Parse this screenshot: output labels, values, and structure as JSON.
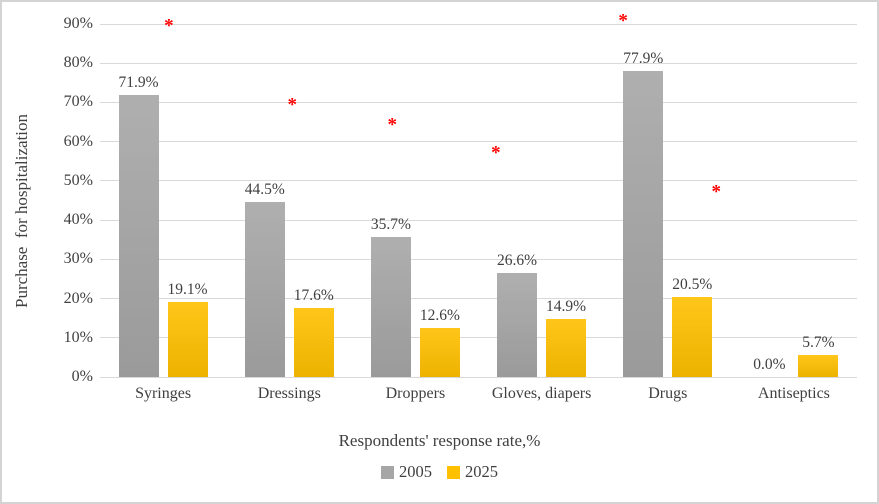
{
  "chart_data": {
    "type": "bar",
    "categories": [
      "Syringes",
      "Dressings",
      "Droppers",
      "Gloves, diapers",
      "Drugs",
      "Antiseptics"
    ],
    "series": [
      {
        "name": "2005",
        "color": "#a6a6a6",
        "values": [
          71.9,
          44.5,
          35.7,
          26.6,
          77.9,
          0.0
        ]
      },
      {
        "name": "2025",
        "color": "#ffc000",
        "values": [
          19.1,
          17.6,
          12.6,
          14.9,
          20.5,
          5.7
        ]
      }
    ],
    "data_labels": {
      "suffix": "%",
      "decimals": 1,
      "color": "#3f3f3f"
    },
    "y_axis": {
      "title": "Purchase  for hospitalization",
      "min": 0,
      "max": 90,
      "step": 10,
      "tick_labels": [
        "0%",
        "10%",
        "20%",
        "30%",
        "40%",
        "50%",
        "60%",
        "70%",
        "80%",
        "90%"
      ]
    },
    "x_axis": {
      "title": "Respondents' response rate,%"
    },
    "legend": {
      "position": "bottom",
      "entries": [
        "2005",
        "2025"
      ]
    },
    "gridlines": {
      "show": true,
      "color": "#d9d9d9"
    },
    "annotations": {
      "marker": "*",
      "color": "#ff0000",
      "points": [
        {
          "near_category": "Syringes",
          "x_frac": 0.091,
          "value": 90.3
        },
        {
          "near_category": "Dressings",
          "x_frac": 0.254,
          "value": 70.0
        },
        {
          "near_category": "Droppers",
          "x_frac": 0.386,
          "value": 65.0
        },
        {
          "near_category": "Gloves, diapers",
          "x_frac": 0.523,
          "value": 58.0
        },
        {
          "near_category": "Drugs",
          "x_frac": 0.691,
          "value": 91.5
        },
        {
          "near_category": "Antiseptics",
          "x_frac": 0.814,
          "value": 48.0
        }
      ]
    }
  }
}
